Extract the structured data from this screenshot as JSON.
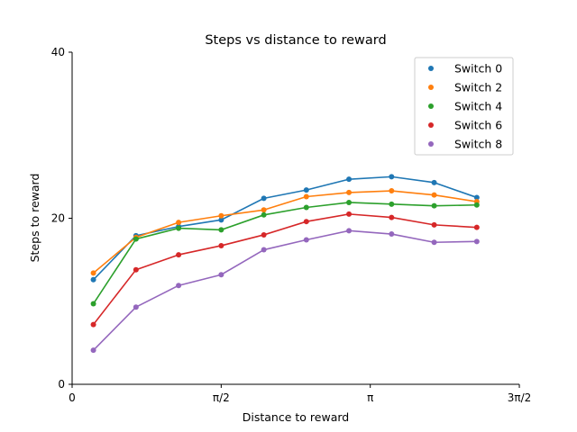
{
  "chart_data": {
    "type": "line",
    "title": "Steps vs distance to reward",
    "xlabel": "Distance to reward",
    "ylabel": "Steps to reward",
    "xlim": [
      0,
      4.712
    ],
    "ylim": [
      0,
      40
    ],
    "x_ticks": [
      {
        "value": 0,
        "label": "0"
      },
      {
        "value": 1.5708,
        "label": "π/2"
      },
      {
        "value": 3.1416,
        "label": "π"
      },
      {
        "value": 4.7124,
        "label": "3π/2"
      }
    ],
    "y_ticks": [
      {
        "value": 0,
        "label": "0"
      },
      {
        "value": 20,
        "label": "20"
      },
      {
        "value": 40,
        "label": "40"
      }
    ],
    "grid": false,
    "legend_position": "top-right",
    "x": [
      0.224,
      0.673,
      1.122,
      1.571,
      2.02,
      2.468,
      2.917,
      3.366,
      3.815,
      4.264
    ],
    "series": [
      {
        "name": "Switch 0",
        "color": "#1f77b4",
        "values": [
          12.6,
          17.9,
          19.0,
          19.8,
          22.4,
          23.4,
          24.7,
          25.0,
          24.3,
          22.5
        ]
      },
      {
        "name": "Switch 2",
        "color": "#ff7f0e",
        "values": [
          13.4,
          17.7,
          19.5,
          20.3,
          21.0,
          22.6,
          23.1,
          23.3,
          22.8,
          22.0
        ]
      },
      {
        "name": "Switch 4",
        "color": "#2ca02c",
        "values": [
          9.7,
          17.5,
          18.8,
          18.6,
          20.4,
          21.3,
          21.9,
          21.7,
          21.5,
          21.6
        ]
      },
      {
        "name": "Switch 6",
        "color": "#d62728",
        "values": [
          7.2,
          13.8,
          15.6,
          16.7,
          18.0,
          19.6,
          20.5,
          20.1,
          19.2,
          18.9
        ]
      },
      {
        "name": "Switch 8",
        "color": "#9467bd",
        "values": [
          4.1,
          9.3,
          11.9,
          13.2,
          16.2,
          17.4,
          18.5,
          18.1,
          17.1,
          17.2
        ]
      }
    ]
  }
}
